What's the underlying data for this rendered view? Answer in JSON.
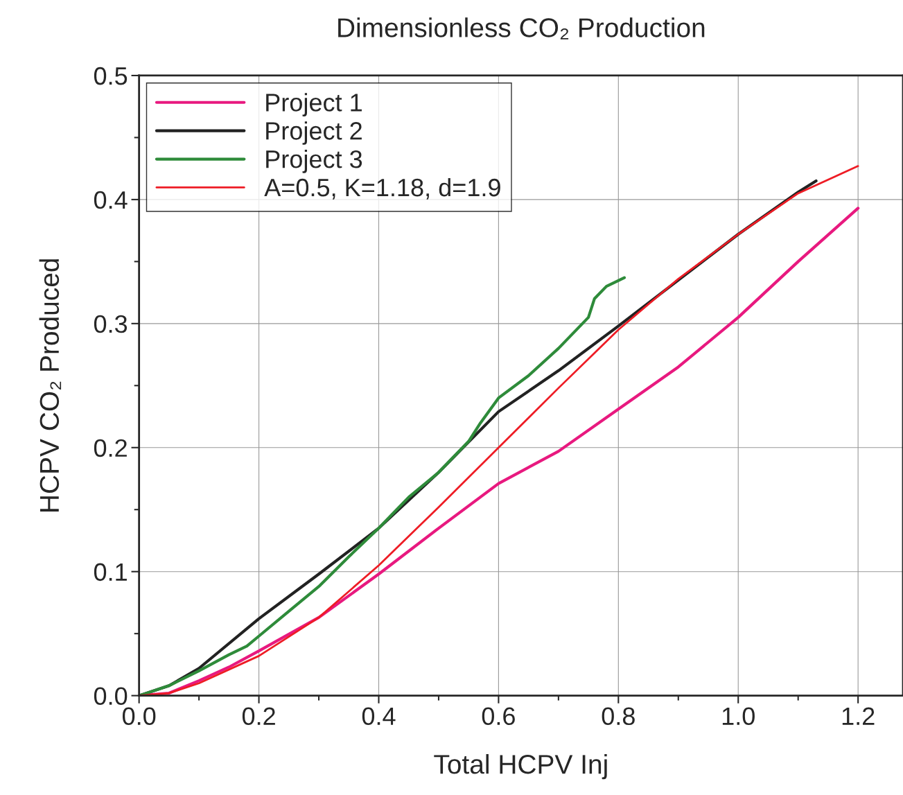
{
  "chart_data": {
    "type": "line",
    "title": "Dimensionless CO₂ Production",
    "xlabel": "Total HCPV Inj",
    "ylabel": "HCPV CO₂ Produced",
    "xlim": [
      0,
      1.275
    ],
    "ylim": [
      0,
      0.5
    ],
    "xticks": [
      {
        "value": 0,
        "label": "0.0"
      },
      0.2,
      0.4,
      0.6,
      0.8,
      {
        "value": 1,
        "label": "1.0"
      },
      1.2
    ],
    "yticks": [
      {
        "value": 0,
        "label": "0.0"
      },
      0.1,
      0.2,
      0.3,
      0.4,
      0.5
    ],
    "grid": true,
    "legend": "top left",
    "line_style": "solid",
    "series": [
      {
        "name": "Project 1",
        "color": "#e8197f",
        "x": [
          0,
          0.05,
          0.1,
          0.15,
          0.2,
          0.3,
          0.4,
          0.5,
          0.6,
          0.7,
          0.8,
          0.9,
          1.0,
          1.1,
          1.2
        ],
        "values": [
          0,
          0.002,
          0.012,
          0.023,
          0.036,
          0.063,
          0.098,
          0.135,
          0.171,
          0.197,
          0.231,
          0.265,
          0.305,
          0.35,
          0.393
        ]
      },
      {
        "name": "Project 2",
        "color": "#222222",
        "x": [
          0,
          0.05,
          0.1,
          0.2,
          0.3,
          0.4,
          0.5,
          0.6,
          0.7,
          0.8,
          0.9,
          1.0,
          1.1,
          1.13
        ],
        "values": [
          0,
          0.008,
          0.022,
          0.062,
          0.098,
          0.135,
          0.18,
          0.229,
          0.262,
          0.298,
          0.335,
          0.372,
          0.406,
          0.415
        ]
      },
      {
        "name": "Project 3",
        "color": "#2e8b3a",
        "x": [
          0,
          0.05,
          0.1,
          0.15,
          0.18,
          0.2,
          0.25,
          0.3,
          0.35,
          0.4,
          0.45,
          0.5,
          0.55,
          0.57,
          0.6,
          0.65,
          0.7,
          0.75,
          0.76,
          0.78,
          0.81
        ],
        "values": [
          0,
          0.008,
          0.02,
          0.033,
          0.04,
          0.048,
          0.068,
          0.088,
          0.112,
          0.135,
          0.16,
          0.18,
          0.205,
          0.22,
          0.24,
          0.258,
          0.28,
          0.305,
          0.32,
          0.33,
          0.337
        ]
      },
      {
        "name": "A=0.5, K=1.18, d=1.9",
        "color": "#ee1c25",
        "x": [
          0,
          0.05,
          0.1,
          0.2,
          0.3,
          0.4,
          0.5,
          0.6,
          0.7,
          0.8,
          0.9,
          1.0,
          1.1,
          1.2
        ],
        "values": [
          0,
          0.002,
          0.01,
          0.032,
          0.063,
          0.105,
          0.152,
          0.2,
          0.248,
          0.295,
          0.336,
          0.372,
          0.405,
          0.427
        ]
      }
    ]
  }
}
